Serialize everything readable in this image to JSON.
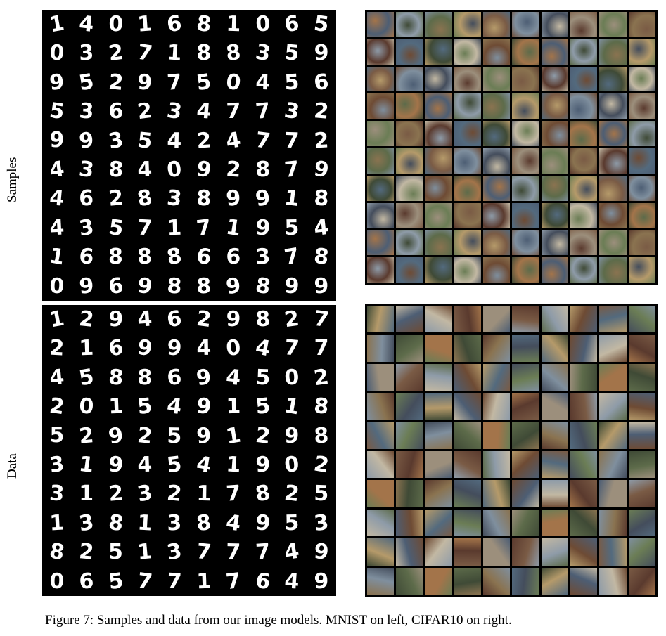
{
  "figure": {
    "row_labels": {
      "samples": "Samples",
      "data": "Data"
    },
    "caption": "Figure 7: Samples and data from our image models. MNIST on left, CIFAR10 on right."
  },
  "mnist_samples_digits": [
    "1",
    "4",
    "0",
    "1",
    "6",
    "8",
    "1",
    "0",
    "6",
    "5",
    "0",
    "3",
    "2",
    "7",
    "1",
    "8",
    "8",
    "3",
    "5",
    "9",
    "9",
    "5",
    "2",
    "9",
    "7",
    "5",
    "0",
    "4",
    "5",
    "6",
    "5",
    "3",
    "6",
    "2",
    "3",
    "4",
    "7",
    "7",
    "3",
    "2",
    "9",
    "9",
    "3",
    "5",
    "4",
    "2",
    "4",
    "7",
    "7",
    "2",
    "4",
    "3",
    "8",
    "4",
    "0",
    "9",
    "2",
    "8",
    "7",
    "9",
    "4",
    "6",
    "2",
    "8",
    "3",
    "8",
    "9",
    "9",
    "1",
    "8",
    "4",
    "3",
    "5",
    "7",
    "1",
    "7",
    "1",
    "9",
    "5",
    "4",
    "1",
    "6",
    "8",
    "8",
    "8",
    "6",
    "6",
    "3",
    "7",
    "8",
    "0",
    "9",
    "6",
    "9",
    "8",
    "8",
    "9",
    "8",
    "9",
    "9"
  ],
  "mnist_data_digits": [
    "1",
    "2",
    "9",
    "4",
    "6",
    "2",
    "9",
    "8",
    "2",
    "7",
    "2",
    "1",
    "6",
    "9",
    "9",
    "4",
    "0",
    "4",
    "7",
    "7",
    "4",
    "5",
    "8",
    "8",
    "6",
    "9",
    "4",
    "5",
    "0",
    "2",
    "2",
    "0",
    "1",
    "5",
    "4",
    "9",
    "1",
    "5",
    "1",
    "8",
    "5",
    "2",
    "9",
    "2",
    "5",
    "9",
    "1",
    "2",
    "9",
    "8",
    "3",
    "1",
    "9",
    "4",
    "5",
    "4",
    "1",
    "9",
    "0",
    "2",
    "3",
    "1",
    "2",
    "3",
    "2",
    "1",
    "7",
    "8",
    "2",
    "5",
    "1",
    "3",
    "8",
    "1",
    "3",
    "8",
    "4",
    "9",
    "5",
    "3",
    "8",
    "2",
    "5",
    "1",
    "3",
    "7",
    "7",
    "7",
    "4",
    "9",
    "0",
    "6",
    "5",
    "7",
    "7",
    "1",
    "7",
    "6",
    "4",
    "9"
  ],
  "cifar_palette": [
    "#5d6b4a",
    "#8a7350",
    "#4d5e74",
    "#9c8f7c",
    "#6e4b34",
    "#7f8f9e",
    "#3f4a36",
    "#b59a6a",
    "#5a3a2e",
    "#8e9ba8",
    "#6b7d55",
    "#a3744a",
    "#444d5c",
    "#c2b8a3",
    "#7a5b45",
    "#536a7e"
  ]
}
